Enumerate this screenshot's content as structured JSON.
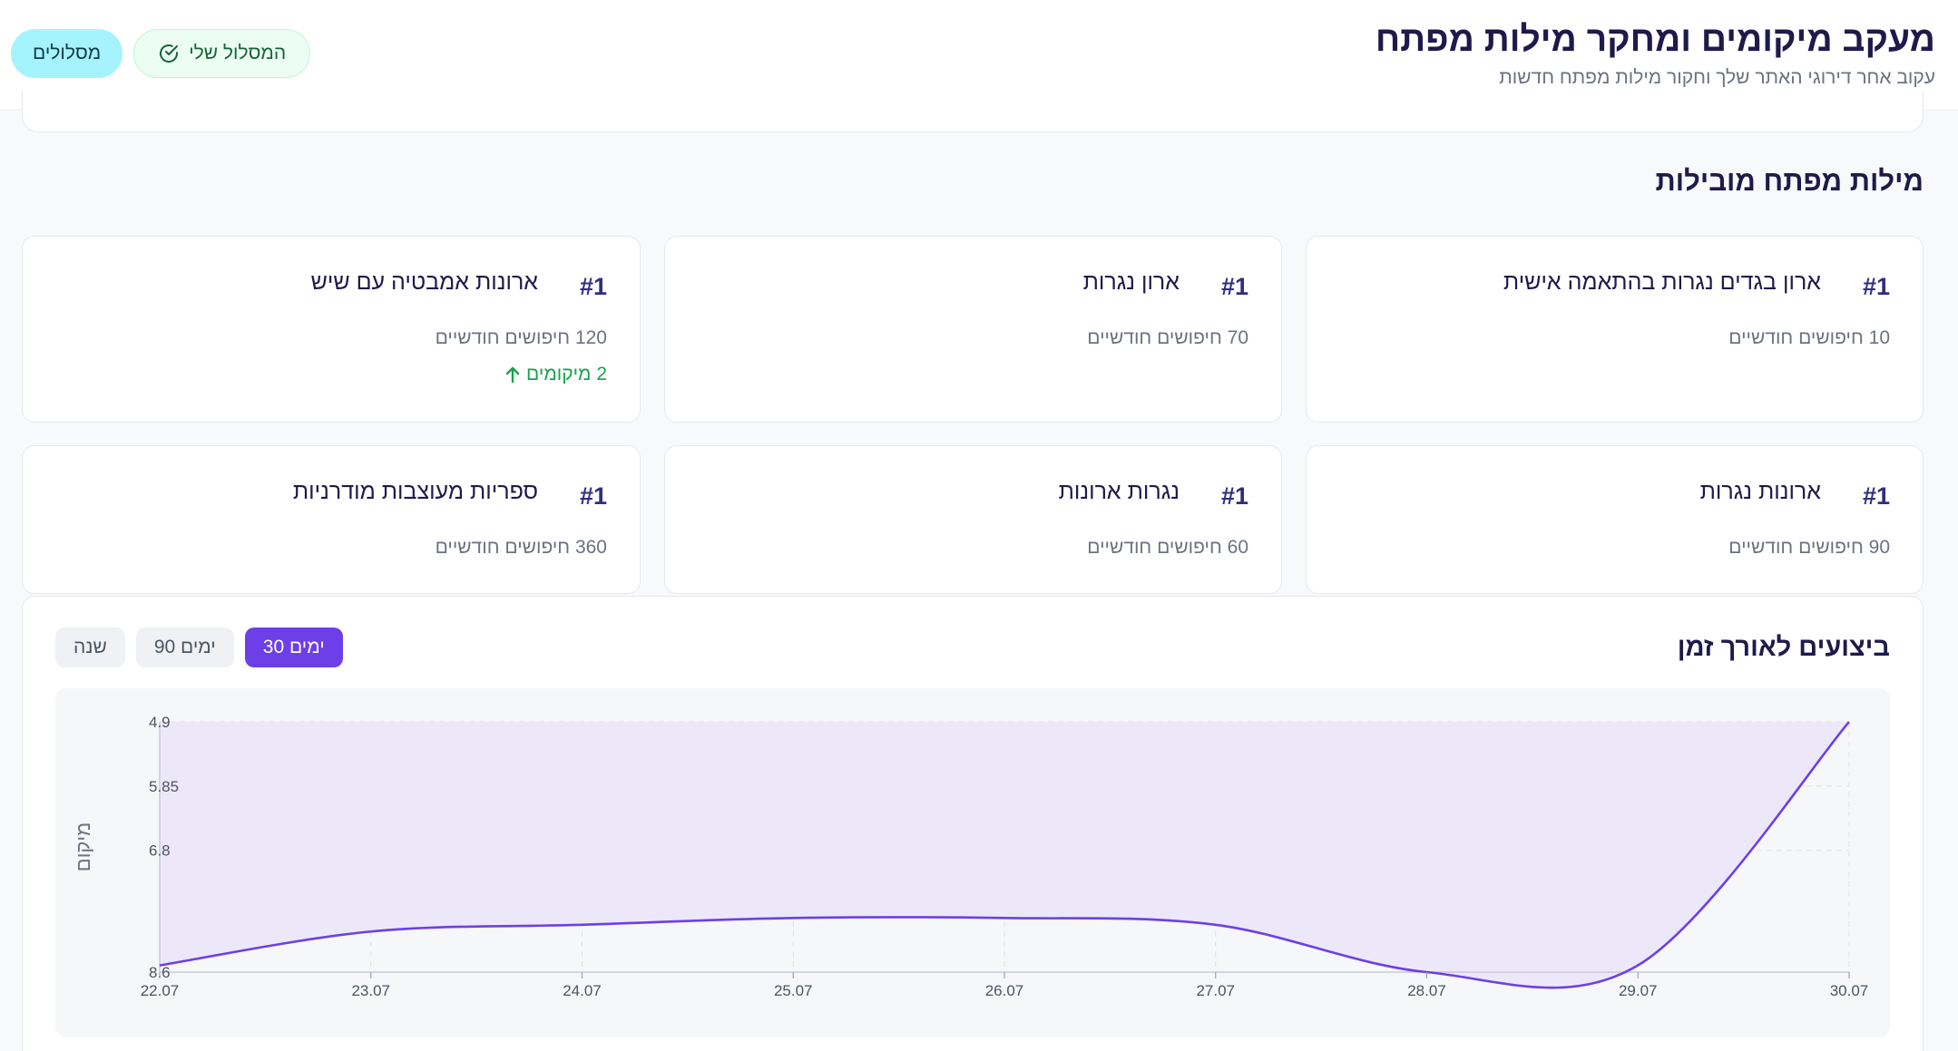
{
  "header": {
    "title": "מעקב מיקומים ומחקר מילות מפתח",
    "subtitle": "עקוב אחר דירוגי האתר שלך וחקור מילות מפתח חדשות",
    "my_route_label": "המסלול שלי",
    "routes_label": "מסלולים"
  },
  "top_keywords": {
    "title": "מילות מפתח מובילות",
    "cards": [
      {
        "rank": "#1",
        "keyword": "ארון בגדים נגרות בהתאמה אישית",
        "volume": "10 חיפושים חודשיים",
        "change": ""
      },
      {
        "rank": "#1",
        "keyword": "ארון נגרות",
        "volume": "70 חיפושים חודשיים",
        "change": ""
      },
      {
        "rank": "#1",
        "keyword": "ארונות אמבטיה עם שיש",
        "volume": "120 חיפושים חודשיים",
        "change": "2 מיקומים"
      },
      {
        "rank": "#1",
        "keyword": "ארונות נגרות",
        "volume": "90 חיפושים חודשיים",
        "change": ""
      },
      {
        "rank": "#1",
        "keyword": "נגרות ארונות",
        "volume": "60 חיפושים חודשיים",
        "change": ""
      },
      {
        "rank": "#1",
        "keyword": "ספריות מעוצבות מודרניות",
        "volume": "360 חיפושים חודשיים",
        "change": ""
      }
    ]
  },
  "performance": {
    "title": "ביצועים לאורך זמן",
    "tabs": [
      "30 ימים",
      "90 ימים",
      "שנה"
    ],
    "active_tab": "30 ימים"
  },
  "colors": {
    "accent": "#6d3fe8",
    "line": "#6d3fe8",
    "fill": "#ebe5f9",
    "positive": "#16a34a"
  },
  "chart_data": {
    "type": "area",
    "x": [
      "22.07",
      "23.07",
      "24.07",
      "25.07",
      "26.07",
      "27.07",
      "28.07",
      "29.07",
      "30.07"
    ],
    "values": [
      8.5,
      8.0,
      7.9,
      7.8,
      7.8,
      7.9,
      8.6,
      8.5,
      4.9
    ],
    "ylabel": "מיקום",
    "y_ticks": [
      "4.9",
      "5.85",
      "6.8",
      "8.6"
    ],
    "y_inverted": true,
    "ylim": [
      4.9,
      8.6
    ],
    "grid": true
  }
}
